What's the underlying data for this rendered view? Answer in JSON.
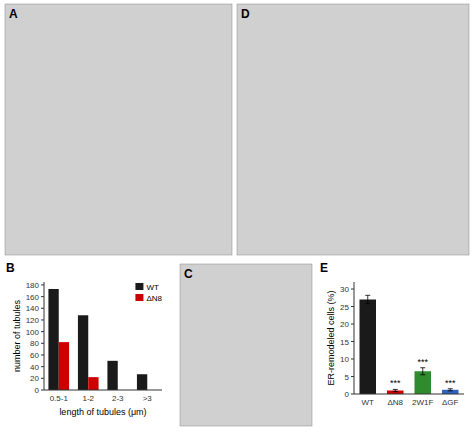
{
  "chart_data": [
    {
      "type": "image",
      "title": "A",
      "color": "#d0d0d0"
    },
    {
      "type": "image",
      "title": "D",
      "color": "#d0d0d0"
    },
    {
      "type": "bar",
      "title": "B",
      "categories": [
        "0.5-1",
        "1-2",
        "2-3",
        ">3"
      ],
      "series": [
        {
          "name": "WT",
          "color": "#1a1a1a",
          "values": [
            173,
            128,
            50,
            27
          ]
        },
        {
          "name": "ΔN8",
          "color": "#cc0000",
          "values": [
            82,
            22,
            0,
            0
          ]
        }
      ],
      "x_label": "length of tubules (μm)",
      "y_label": "number of tubules",
      "ylim": [
        0,
        185
      ],
      "yticks": [
        0,
        20,
        40,
        60,
        80,
        100,
        120,
        140,
        160,
        180
      ],
      "legend": "upper-right"
    },
    {
      "type": "image",
      "title": "C",
      "color": "#d0d0d0"
    },
    {
      "type": "bar",
      "title": "E",
      "categories": [
        "WT",
        "ΔN8",
        "2W1F",
        "ΔGF"
      ],
      "values": [
        27.0,
        1.0,
        6.5,
        1.2
      ],
      "errors": [
        1.2,
        0.3,
        1.0,
        0.3
      ],
      "colors": [
        "#1a1a1a",
        "#cc0000",
        "#2e8b2e",
        "#3060c0"
      ],
      "annotations": [
        null,
        "***",
        "***",
        "***"
      ],
      "y_label": "ER-remodeled cells (%)",
      "ylim": [
        0,
        32
      ],
      "yticks": [
        0,
        5,
        10,
        15,
        20,
        25,
        30
      ]
    }
  ]
}
